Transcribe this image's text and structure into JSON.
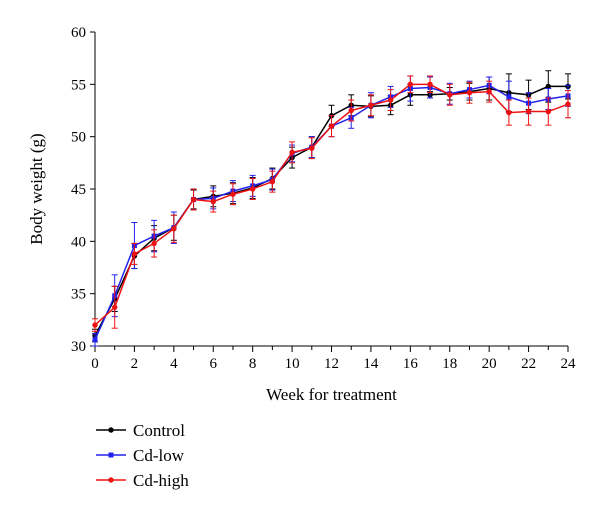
{
  "chart_data": {
    "type": "line",
    "title": "",
    "xlabel": "Week for treatment",
    "ylabel": "Body weight (g)",
    "xlim": [
      0,
      24
    ],
    "ylim": [
      30,
      60
    ],
    "x_ticks": [
      0,
      2,
      4,
      6,
      8,
      10,
      12,
      14,
      16,
      18,
      20,
      22,
      24
    ],
    "y_ticks": [
      30,
      35,
      40,
      45,
      50,
      55,
      60
    ],
    "grid": false,
    "legend_position": "bottom-left",
    "x": [
      0,
      1,
      2,
      3,
      4,
      5,
      6,
      7,
      8,
      9,
      10,
      11,
      12,
      13,
      14,
      15,
      16,
      17,
      18,
      19,
      20,
      21,
      22,
      23,
      24
    ],
    "series": [
      {
        "name": "Control",
        "color": "#000000",
        "marker": "circle",
        "values": [
          31.0,
          34.5,
          38.6,
          40.3,
          41.3,
          44.0,
          44.3,
          44.6,
          45.1,
          46.0,
          48.0,
          49.0,
          52.0,
          53.0,
          52.9,
          53.0,
          54.0,
          54.0,
          54.1,
          54.3,
          54.6,
          54.2,
          54.0,
          54.8,
          54.8
        ],
        "errors": [
          0.6,
          1.2,
          1.2,
          1.2,
          1.2,
          0.9,
          1.0,
          1.0,
          1.0,
          1.0,
          1.0,
          1.0,
          1.0,
          1.0,
          1.0,
          0.9,
          1.0,
          0.3,
          0.6,
          0.8,
          1.1,
          1.8,
          1.4,
          1.5,
          1.2
        ]
      },
      {
        "name": "Cd-low",
        "color": "#2222ee",
        "marker": "square",
        "values": [
          30.6,
          34.8,
          39.6,
          40.5,
          41.3,
          44.0,
          44.1,
          44.8,
          45.3,
          45.9,
          48.4,
          49.0,
          51.0,
          51.8,
          53.0,
          53.8,
          54.6,
          54.7,
          54.1,
          54.5,
          54.9,
          53.8,
          53.2,
          53.6,
          53.9
        ],
        "errors": [
          0.6,
          2.0,
          2.2,
          1.5,
          1.5,
          1.0,
          1.0,
          1.0,
          1.0,
          1.0,
          0.8,
          1.0,
          1.0,
          1.0,
          1.2,
          1.0,
          1.2,
          1.0,
          1.0,
          0.8,
          0.8,
          1.5,
          1.0,
          1.0,
          1.0
        ]
      },
      {
        "name": "Cd-high",
        "color": "#ee1111",
        "marker": "circle",
        "values": [
          32.0,
          33.7,
          38.8,
          39.8,
          41.2,
          44.0,
          43.8,
          44.5,
          45.0,
          45.7,
          48.5,
          48.9,
          51.0,
          52.5,
          53.0,
          53.5,
          55.0,
          55.0,
          54.0,
          54.2,
          54.3,
          52.3,
          52.4,
          52.4,
          53.1
        ],
        "errors": [
          0.6,
          2.0,
          1.0,
          1.3,
          1.3,
          1.0,
          1.0,
          1.0,
          1.0,
          1.0,
          1.0,
          1.0,
          1.0,
          1.0,
          1.0,
          1.0,
          0.8,
          0.8,
          1.0,
          1.0,
          1.0,
          1.2,
          1.3,
          1.3,
          1.3
        ]
      }
    ]
  }
}
